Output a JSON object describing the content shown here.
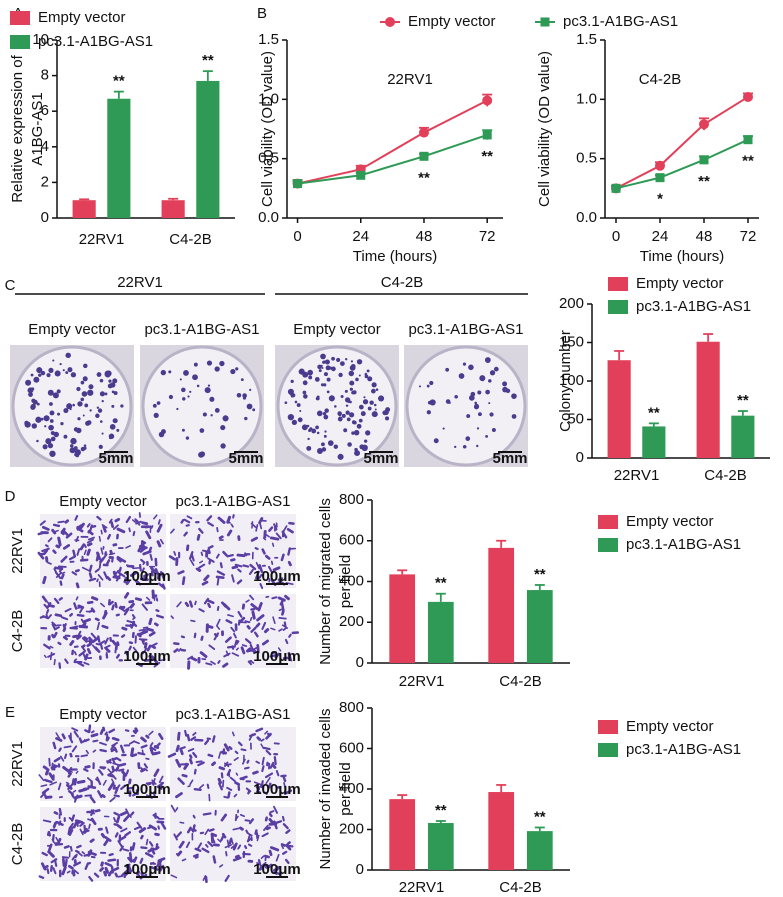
{
  "panels": [
    "A",
    "B",
    "C",
    "D",
    "E"
  ],
  "colony_images": {
    "groups": [
      "22RV1",
      "C4-2B"
    ],
    "columns": [
      "Empty vector",
      "pc3.1-A1BG-AS1",
      "Empty vector",
      "pc3.1-A1BG-AS1"
    ],
    "scale_bar": "5mm"
  },
  "migration_images": {
    "columns": [
      "Empty vector",
      "pc3.1-A1BG-AS1"
    ],
    "rows": [
      "22RV1",
      "C4-2B"
    ],
    "scale_bar": "100μm"
  },
  "invasion_images": {
    "columns": [
      "Empty vector",
      "pc3.1-A1BG-AS1"
    ],
    "rows": [
      "22RV1",
      "C4-2B"
    ],
    "scale_bar": "100μm"
  },
  "chart_data": [
    {
      "type": "bar",
      "ylabel": [
        "Relative expression of",
        "A1BG-AS1"
      ],
      "categories": [
        "22RV1",
        "C4-2B"
      ],
      "ylim": [
        0,
        10
      ],
      "yticks": [
        0,
        2,
        4,
        6,
        8,
        10
      ],
      "series": [
        {
          "name": "Empty vector",
          "color": "#e2405a",
          "values": [
            1.0,
            1.0
          ],
          "errors": [
            0.05,
            0.08
          ]
        },
        {
          "name": "pc3.1-A1BG-AS1",
          "color": "#2e9a55",
          "values": [
            6.7,
            7.7
          ],
          "errors": [
            0.4,
            0.55
          ],
          "significance": [
            "**",
            "**"
          ]
        }
      ]
    },
    {
      "type": "line",
      "title": "22RV1",
      "ylabel": [
        "Cell viability (OD value)"
      ],
      "xlabel": "Time (hours)",
      "x": [
        0,
        24,
        48,
        72
      ],
      "xlim": [
        -4,
        78
      ],
      "xticks": [
        0,
        24,
        48,
        72
      ],
      "ylim": [
        0,
        1.5
      ],
      "yticks": [
        {
          "value": 0,
          "label": "0.0"
        },
        0.5,
        {
          "value": 1,
          "label": "1.0"
        },
        1.5
      ],
      "series": [
        {
          "name": "Empty vector",
          "color": "#e2405a",
          "marker": "circle",
          "values": [
            0.29,
            0.41,
            0.72,
            0.99
          ],
          "errors": [
            0.03,
            0.03,
            0.04,
            0.05
          ]
        },
        {
          "name": "pc3.1-A1BG-AS1",
          "color": "#2e9a55",
          "marker": "square",
          "values": [
            0.29,
            0.36,
            0.52,
            0.7
          ],
          "errors": [
            0.02,
            0.02,
            0.02,
            0.04
          ],
          "significance": [
            null,
            null,
            "**",
            "**"
          ]
        }
      ]
    },
    {
      "type": "line",
      "title": "C4-2B",
      "ylabel": [
        "Cell viability (OD value)"
      ],
      "xlabel": "Time (hours)",
      "x": [
        0,
        24,
        48,
        72
      ],
      "xlim": [
        -6,
        78
      ],
      "xticks": [
        0,
        24,
        48,
        72
      ],
      "ylim": [
        0,
        1.5
      ],
      "yticks": [
        {
          "value": 0,
          "label": "0.0"
        },
        0.5,
        {
          "value": 1,
          "label": "1.0"
        },
        1.5
      ],
      "series": [
        {
          "color": "#e2405a",
          "marker": "circle",
          "values": [
            0.25,
            0.44,
            0.79,
            1.02
          ],
          "errors": [
            0.02,
            0.03,
            0.05,
            0.03
          ]
        },
        {
          "color": "#2e9a55",
          "marker": "square",
          "values": [
            0.25,
            0.34,
            0.49,
            0.66
          ],
          "errors": [
            0.02,
            0.02,
            0.03,
            0.03
          ],
          "significance": [
            null,
            "*",
            "**",
            "**"
          ]
        }
      ]
    },
    {
      "type": "bar",
      "ylabel": [
        "Colony number"
      ],
      "categories": [
        "22RV1",
        "C4-2B"
      ],
      "ylim": [
        0,
        200
      ],
      "yticks": [
        0,
        50,
        100,
        150,
        200
      ],
      "series": [
        {
          "name": "Empty vector",
          "color": "#e2405a",
          "values": [
            127,
            151
          ],
          "errors": [
            12,
            10
          ]
        },
        {
          "name": "pc3.1-A1BG-AS1",
          "color": "#2e9a55",
          "values": [
            41,
            55
          ],
          "errors": [
            4,
            6
          ],
          "significance": [
            "**",
            "**"
          ]
        }
      ]
    },
    {
      "type": "bar",
      "ylabel": [
        "Number of migrated cells",
        "per field"
      ],
      "categories": [
        "22RV1",
        "C4-2B"
      ],
      "ylim": [
        0,
        800
      ],
      "yticks": [
        0,
        200,
        400,
        600,
        800
      ],
      "series": [
        {
          "name": "Empty vector",
          "color": "#e2405a",
          "values": [
            435,
            565
          ],
          "errors": [
            20,
            35
          ]
        },
        {
          "name": "pc3.1-A1BG-AS1",
          "color": "#2e9a55",
          "values": [
            300,
            358
          ],
          "errors": [
            40,
            25
          ],
          "significance": [
            "**",
            "**"
          ]
        }
      ]
    },
    {
      "type": "bar",
      "ylabel": [
        "Number of invaded cells",
        "per field"
      ],
      "categories": [
        "22RV1",
        "C4-2B"
      ],
      "ylim": [
        0,
        800
      ],
      "yticks": [
        0,
        200,
        400,
        600,
        800
      ],
      "series": [
        {
          "name": "Empty vector",
          "color": "#e2405a",
          "values": [
            350,
            385
          ],
          "errors": [
            20,
            35
          ]
        },
        {
          "name": "pc3.1-A1BG-AS1",
          "color": "#2e9a55",
          "values": [
            232,
            192
          ],
          "errors": [
            10,
            18
          ],
          "significance": [
            "**",
            "**"
          ]
        }
      ]
    }
  ]
}
